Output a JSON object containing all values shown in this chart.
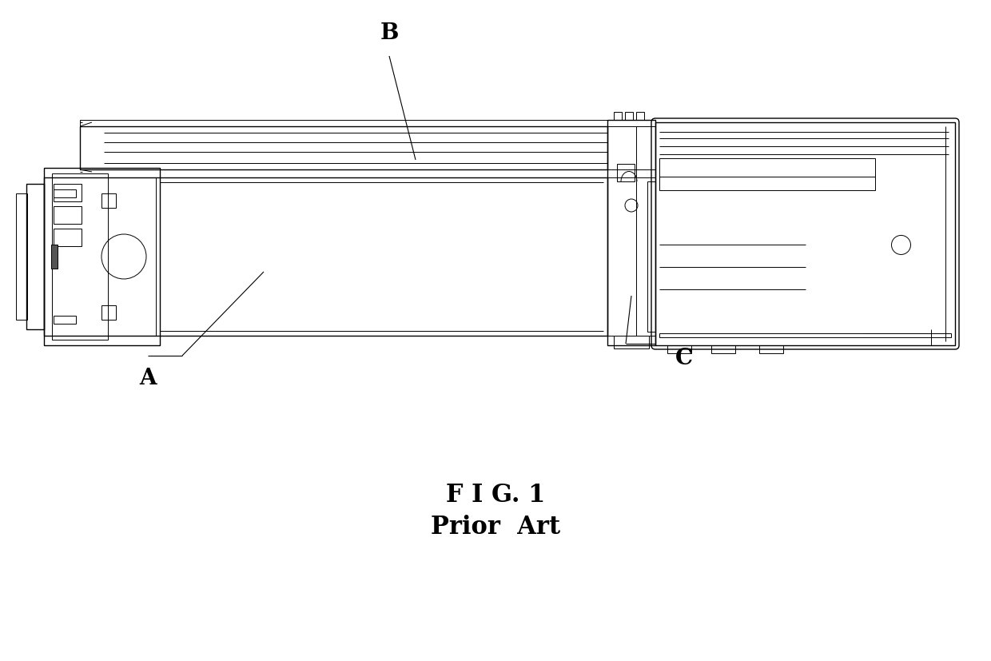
{
  "bg_color": "#ffffff",
  "line_color": "#000000",
  "title_line1": "F I G. 1",
  "title_line2": "Prior  Art",
  "label_A": "A",
  "label_B": "B",
  "label_C": "C",
  "figsize": [
    12.4,
    8.27
  ],
  "dpi": 100,
  "lw_thin": 0.7,
  "lw_med": 1.0,
  "lw_thick": 1.4
}
